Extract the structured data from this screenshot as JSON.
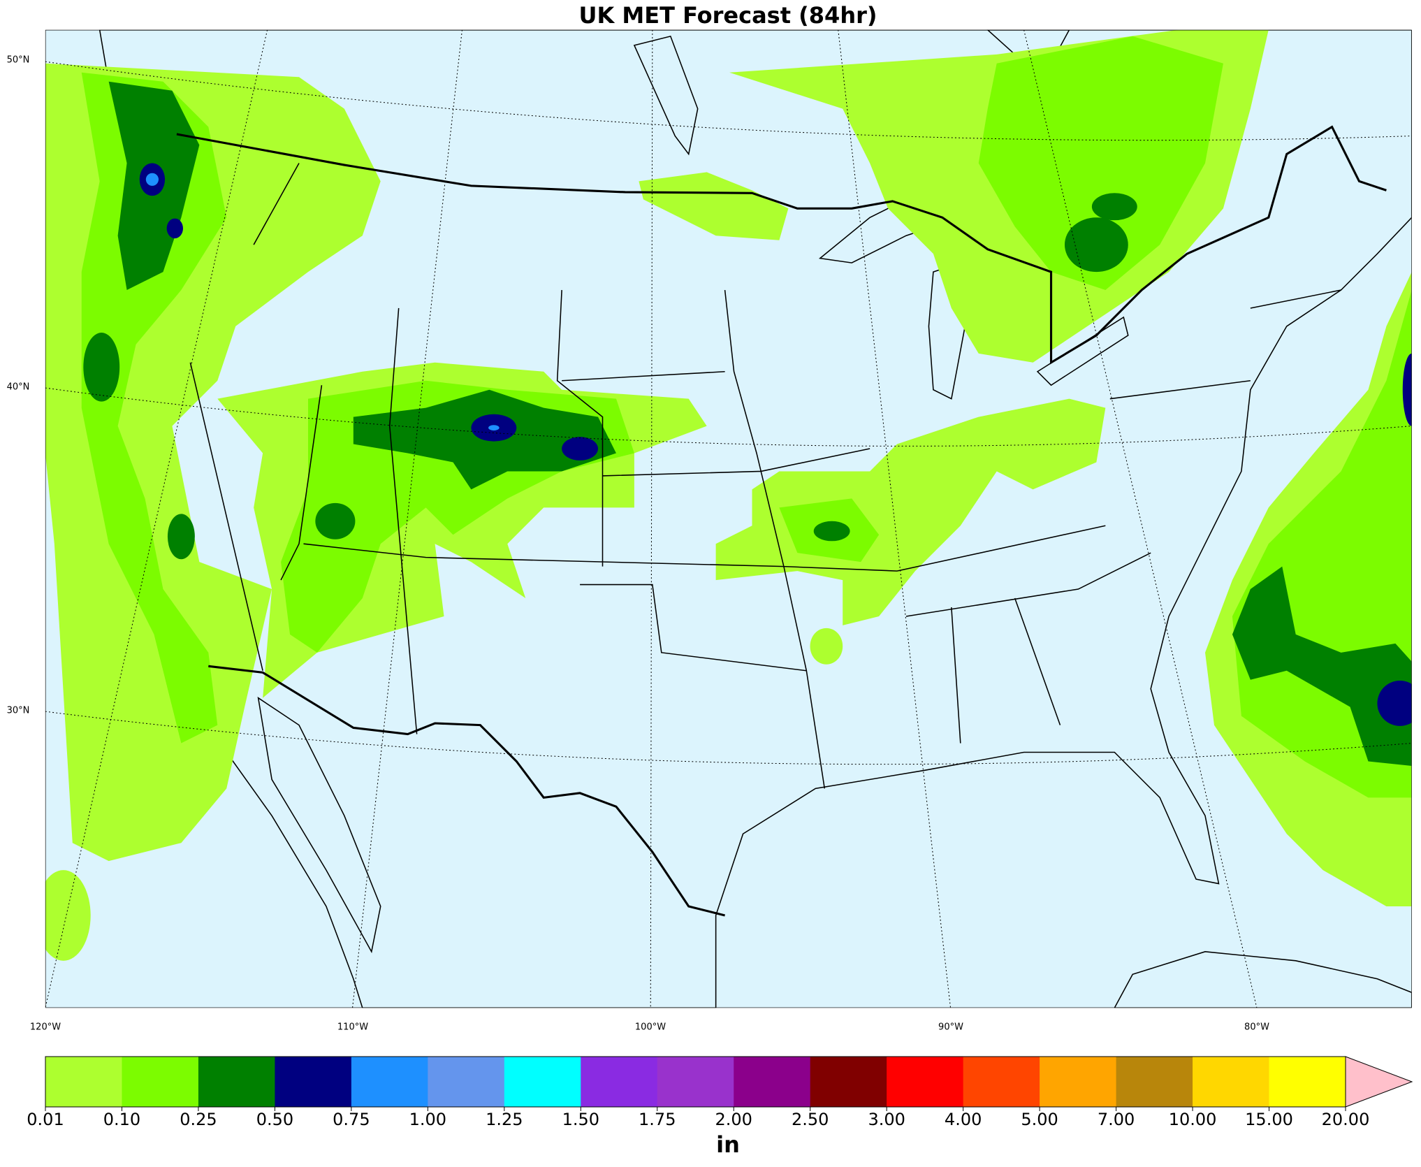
{
  "title": "UK MET Forecast (84hr)",
  "map": {
    "lat_labels": [
      "50°N",
      "40°N",
      "30°N"
    ],
    "lon_labels": [
      "120°W",
      "110°W",
      "100°W",
      "90°W",
      "80°W"
    ]
  },
  "colorbar": {
    "unit": "in",
    "colors": [
      "#adff2f",
      "#7cfc00",
      "#008000",
      "#000080",
      "#1e90ff",
      "#6495ed",
      "#00ffff",
      "#8a2be2",
      "#9932cc",
      "#8b008b",
      "#800000",
      "#ff0000",
      "#ff4500",
      "#ffa500",
      "#b8860b",
      "#ffd700",
      "#ffff00"
    ],
    "extend_color": "#ffc0cb",
    "ticks": [
      0.01,
      {
        "value": 0.1,
        "label": "0.10"
      },
      0.25,
      {
        "value": 0.5,
        "label": "0.50"
      },
      0.75,
      {
        "value": 1,
        "label": "1.00"
      },
      1.25,
      {
        "value": 1.5,
        "label": "1.50"
      },
      1.75,
      {
        "value": 2,
        "label": "2.00"
      },
      {
        "value": 2.5,
        "label": "2.50"
      },
      {
        "value": 3,
        "label": "3.00"
      },
      {
        "value": 4,
        "label": "4.00"
      },
      {
        "value": 5,
        "label": "5.00"
      },
      {
        "value": 7,
        "label": "7.00"
      },
      {
        "value": 10,
        "label": "10.00"
      },
      {
        "value": 15,
        "label": "15.00"
      },
      {
        "value": 20,
        "label": "20.00"
      }
    ]
  }
}
